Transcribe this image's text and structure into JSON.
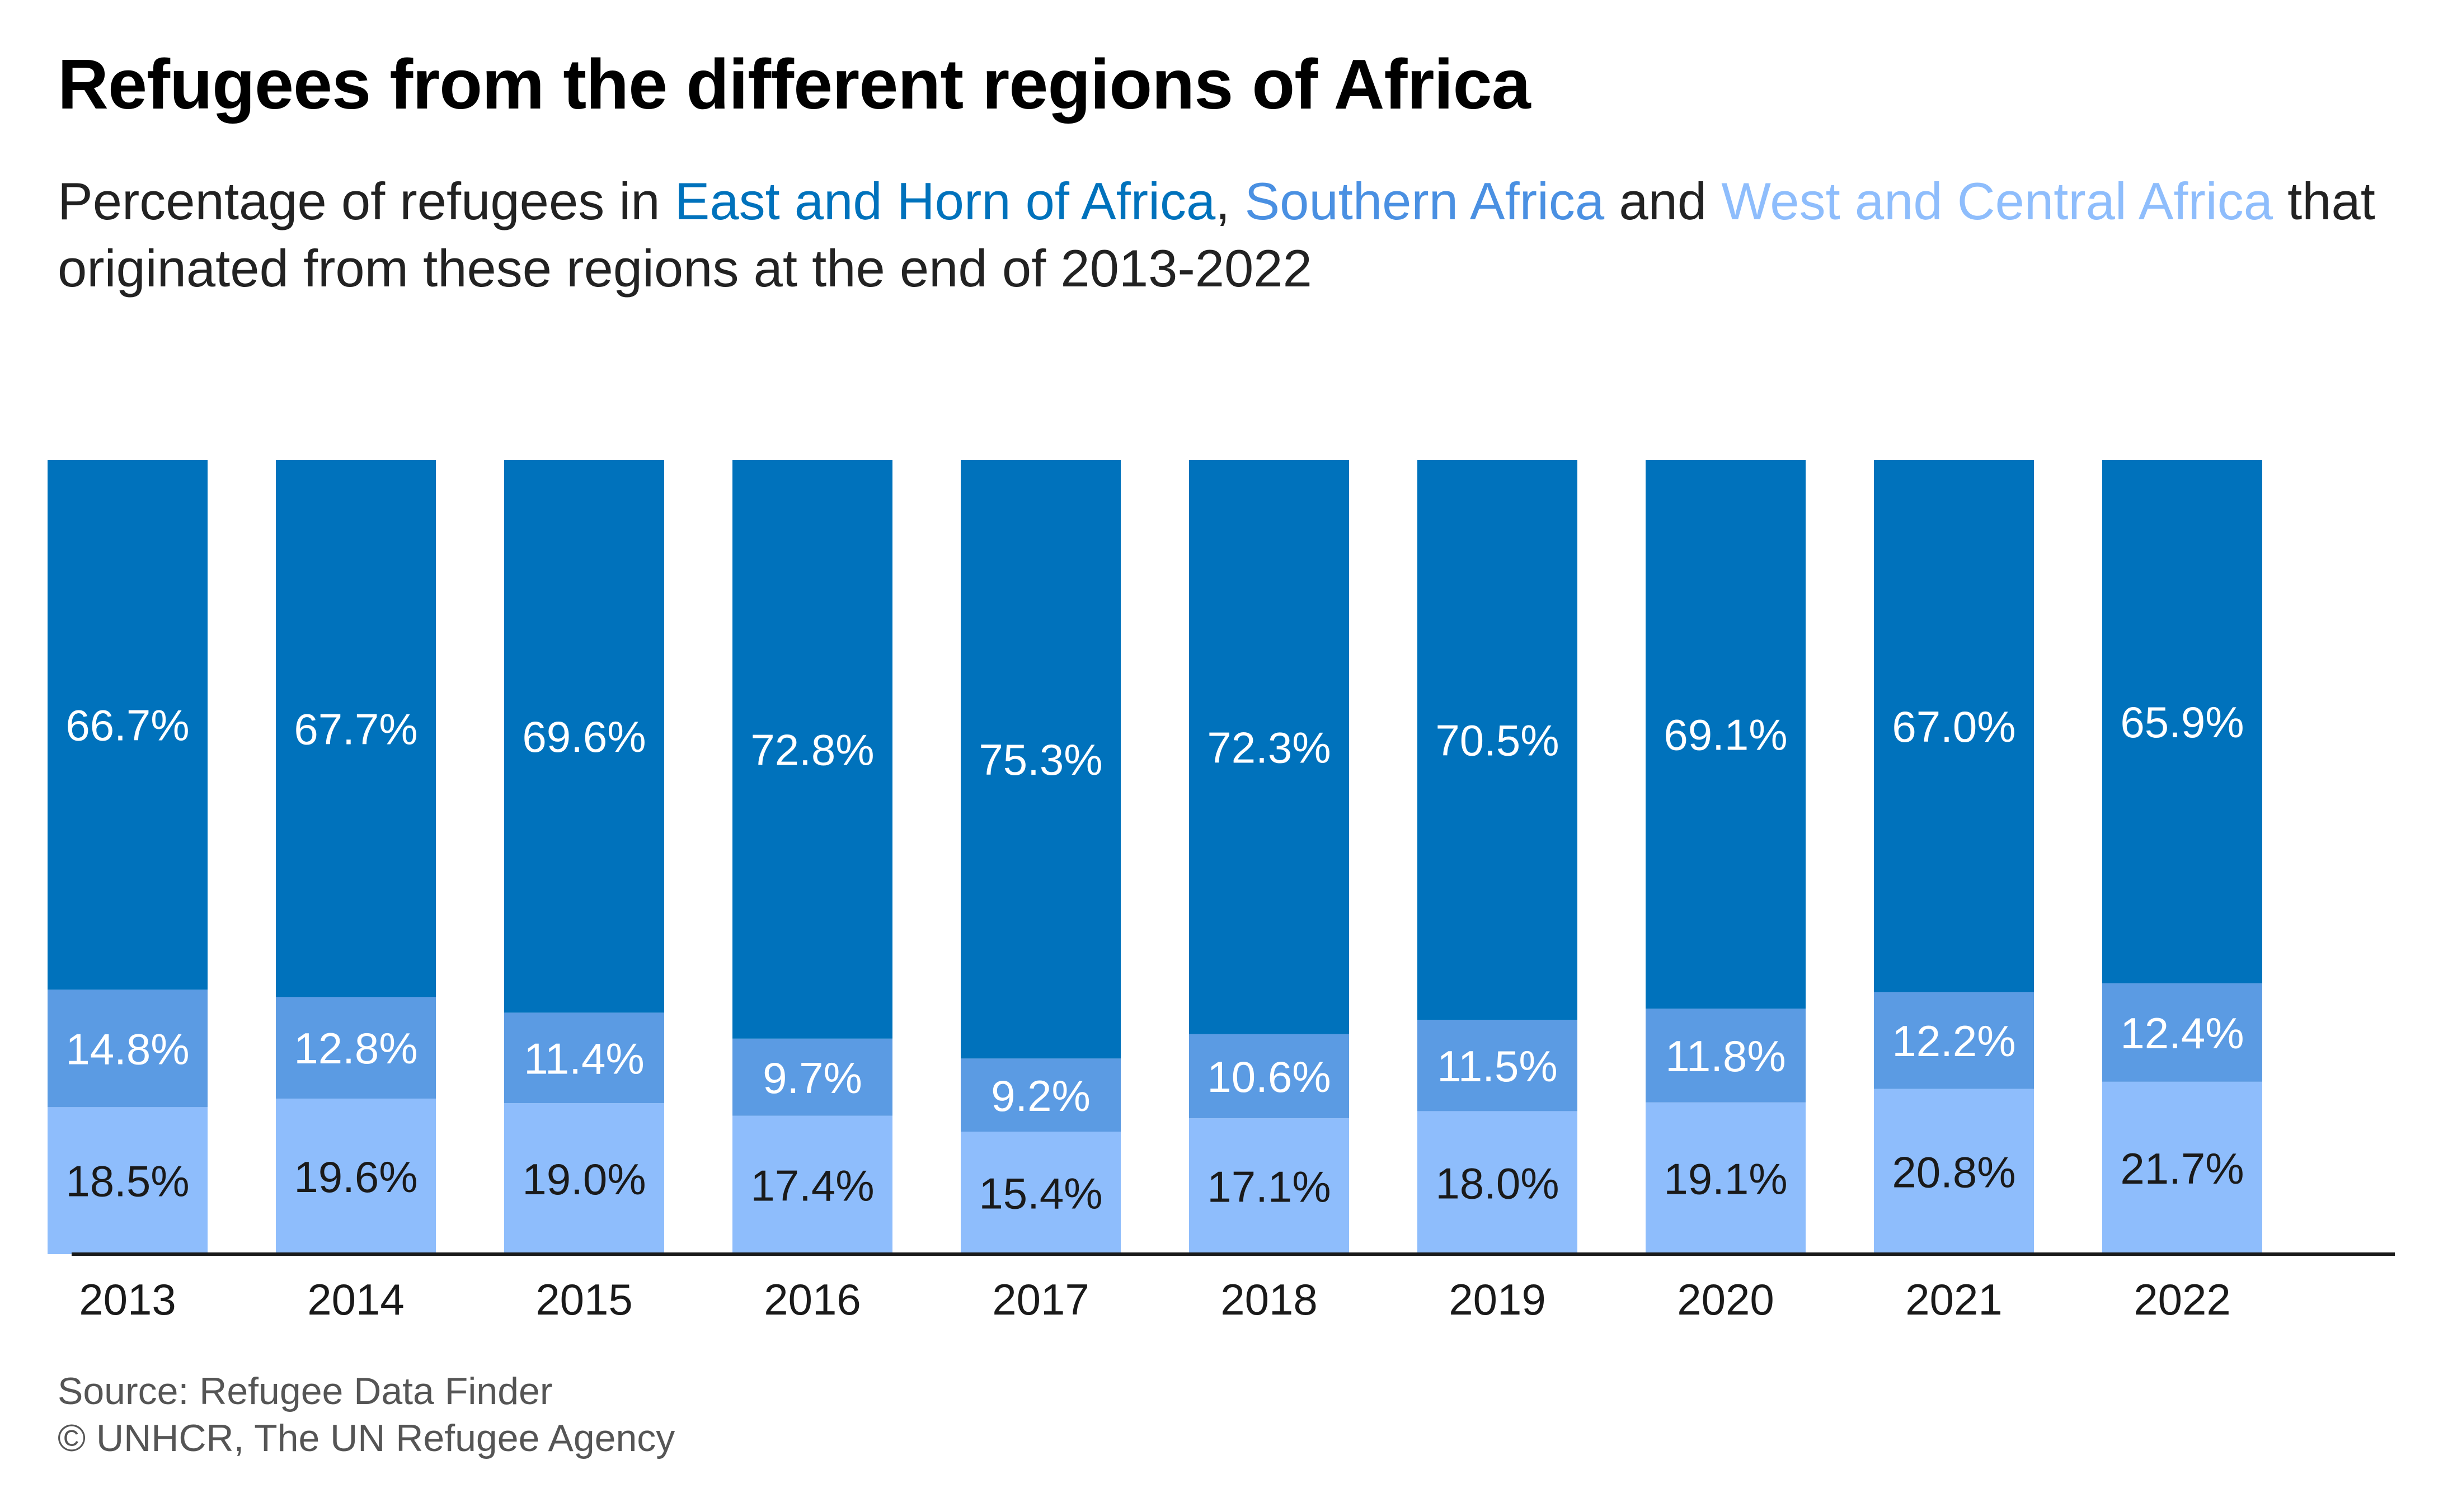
{
  "header": {
    "title": "Refugees from the different regions of Africa",
    "subtitle_prefix": "Percentage of refugees in ",
    "subtitle_sep1": ", ",
    "subtitle_sep2": " and ",
    "subtitle_suffix": " that originated from these regions at the end of 2013-2022"
  },
  "footer": {
    "source": "Source: Refugee Data Finder",
    "credit": "© UNHCR, The UN Refugee Agency"
  },
  "colors": {
    "east_horn": "#0072bc",
    "southern": "#5b9be3",
    "west_central": "#8ebdfc",
    "axis": "#1a1a1a",
    "label_on_bar": "#ffffff",
    "label_on_light": "#1a1a1a"
  },
  "chart_data": {
    "type": "bar",
    "stacked": true,
    "categories": [
      "2013",
      "2014",
      "2015",
      "2016",
      "2017",
      "2018",
      "2019",
      "2020",
      "2021",
      "2022"
    ],
    "ylim": [
      0,
      100
    ],
    "grid": false,
    "legend": "inline in subtitle",
    "series": [
      {
        "name": "West and Central Africa",
        "values": [
          18.5,
          19.6,
          19.0,
          17.4,
          15.4,
          17.1,
          18.0,
          19.1,
          20.8,
          21.7
        ],
        "labels": [
          "18.5%",
          "19.6%",
          "19.0%",
          "17.4%",
          "15.4%",
          "17.1%",
          "18.0%",
          "19.1%",
          "20.8%",
          "21.7%"
        ]
      },
      {
        "name": "Southern Africa",
        "values": [
          14.8,
          12.8,
          11.4,
          9.7,
          9.2,
          10.6,
          11.5,
          11.8,
          12.2,
          12.4
        ],
        "labels": [
          "14.8%",
          "12.8%",
          "11.4%",
          "9.7%",
          "9.2%",
          "10.6%",
          "11.5%",
          "11.8%",
          "12.2%",
          "12.4%"
        ]
      },
      {
        "name": "East and Horn of Africa",
        "values": [
          66.7,
          67.7,
          69.6,
          72.8,
          75.3,
          72.3,
          70.5,
          69.1,
          67.0,
          65.9
        ],
        "labels": [
          "66.7%",
          "67.7%",
          "69.6%",
          "72.8%",
          "75.3%",
          "72.3%",
          "70.5%",
          "69.1%",
          "67.0%",
          "65.9%"
        ]
      }
    ]
  }
}
